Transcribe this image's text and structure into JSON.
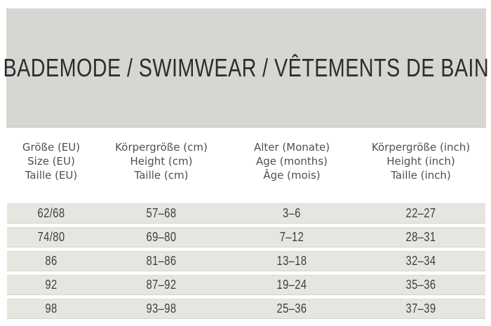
{
  "title": "BADEMODE / SWIMWEAR / VÊTEMENTS DE BAIN",
  "table": {
    "columns": [
      {
        "name": "size-eu",
        "lines": [
          "Größe (EU)",
          "Size (EU)",
          "Taille (EU)"
        ]
      },
      {
        "name": "height-cm",
        "lines": [
          "Körpergröße (cm)",
          "Height (cm)",
          "Taille (cm)"
        ]
      },
      {
        "name": "age-months",
        "lines": [
          "Alter (Monate)",
          "Age (months)",
          "Âge (mois)"
        ]
      },
      {
        "name": "height-inch",
        "lines": [
          "Körpergröße (inch)",
          "Height (inch)",
          "Taille (inch)"
        ]
      }
    ],
    "rows": [
      [
        "62/68",
        "57–68",
        "3–6",
        "22–27"
      ],
      [
        "74/80",
        "69–80",
        "7–12",
        "28–31"
      ],
      [
        "86",
        "81–86",
        "13–18",
        "32–34"
      ],
      [
        "92",
        "87–92",
        "19–24",
        "35–36"
      ],
      [
        "98",
        "93–98",
        "25–36",
        "37–39"
      ]
    ]
  },
  "colors": {
    "banner_bg": "#d6d6d2",
    "row_bg": "#e6e6e1",
    "title_text": "#2d2d2d",
    "header_text": "#4f4f4f",
    "cell_text": "#3e3e3e"
  }
}
